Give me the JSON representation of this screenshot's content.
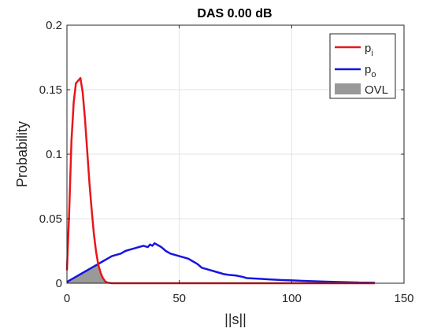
{
  "chart_data": {
    "type": "line",
    "title": "DAS 0.00 dB",
    "xlabel": "||s||",
    "ylabel": "Probability",
    "xlim": [
      0,
      150
    ],
    "ylim": [
      0,
      0.2
    ],
    "xticks": [
      0,
      50,
      100,
      150
    ],
    "yticks": [
      0,
      0.05,
      0.1,
      0.15,
      0.2
    ],
    "xtick_labels": [
      "0",
      "50",
      "100",
      "150"
    ],
    "ytick_labels": [
      "0",
      "0.05",
      "0.1",
      "0.15",
      "0.2"
    ],
    "grid": true,
    "legend_position": "top-right",
    "series": [
      {
        "name": "p",
        "subscript": "i",
        "color": "#e8161b",
        "x": [
          0,
          1,
          2,
          3,
          4,
          5,
          6,
          7,
          8,
          9,
          10,
          11,
          12,
          13,
          14,
          15,
          16,
          17,
          18,
          19,
          20,
          22,
          25,
          30,
          40,
          60,
          100,
          137
        ],
        "y": [
          0.01,
          0.055,
          0.11,
          0.14,
          0.155,
          0.157,
          0.159,
          0.148,
          0.128,
          0.103,
          0.078,
          0.057,
          0.038,
          0.024,
          0.014,
          0.008,
          0.004,
          0.0015,
          0.0005,
          0.0002,
          0,
          0,
          0,
          0,
          0,
          0,
          0,
          0
        ]
      },
      {
        "name": "p",
        "subscript": "o",
        "color": "#1515e0",
        "x": [
          0,
          2,
          4,
          6,
          8,
          10,
          12,
          14,
          16,
          18,
          20,
          22,
          24,
          26,
          28,
          30,
          32,
          34,
          36,
          37,
          38,
          39,
          40,
          42,
          44,
          46,
          48,
          50,
          52,
          54,
          56,
          58,
          60,
          62,
          64,
          66,
          68,
          70,
          72,
          75,
          78,
          80,
          85,
          90,
          95,
          100,
          105,
          110,
          115,
          120,
          125,
          130,
          137
        ],
        "y": [
          0.001,
          0.003,
          0.005,
          0.007,
          0.009,
          0.011,
          0.013,
          0.015,
          0.017,
          0.019,
          0.021,
          0.022,
          0.023,
          0.025,
          0.026,
          0.027,
          0.028,
          0.029,
          0.028,
          0.03,
          0.029,
          0.031,
          0.03,
          0.028,
          0.025,
          0.023,
          0.022,
          0.021,
          0.02,
          0.019,
          0.017,
          0.015,
          0.012,
          0.011,
          0.01,
          0.009,
          0.008,
          0.007,
          0.0065,
          0.006,
          0.005,
          0.004,
          0.0035,
          0.003,
          0.0025,
          0.0022,
          0.0018,
          0.0015,
          0.0012,
          0.001,
          0.0008,
          0.0005,
          0.0004
        ]
      },
      {
        "name": "OVL",
        "color": "#999999",
        "kind": "area"
      }
    ]
  }
}
